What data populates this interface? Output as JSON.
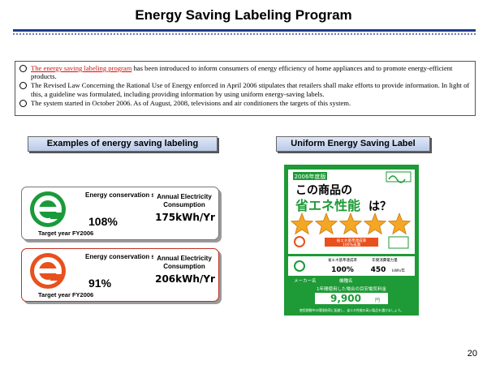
{
  "slide": {
    "title": "Energy Saving Labeling Program",
    "page_number": "20"
  },
  "bullets": {
    "b1_link": "The energy saving labeling program",
    "b1_rest": " has been introduced to inform consumers of energy efficiency of home appliances and to promote energy-efficient products.",
    "b2": "The Revised Law Concerning the Rational Use of Energy enforced in April 2006 stipulates  that retailers shall make efforts to provide information. In light of this, a guideline was formulated, including providing information by using uniform energy-saving labels.",
    "b3": "The system started in October 2006. As of August, 2008, televisions and air conditioners the targets of this system."
  },
  "examples": {
    "header": "Examples of energy saving labeling",
    "card1": {
      "label1": "Energy conservation standard achievement percentage",
      "percent": "108%",
      "label2": "Annual Electricity Consumption",
      "kwh": "175kWh/Yr",
      "target": "Target year FY2006",
      "color": "#1a9a3a"
    },
    "card2": {
      "label1": "Energy conservation standard achievement percentage",
      "percent": "91%",
      "label2": "Annual Electricity Consumption",
      "kwh": "206kWh/Yr",
      "target": "Target year FY2006",
      "color": "#e8501e"
    }
  },
  "uniform": {
    "header": "Uniform Energy Saving Label",
    "year_badge": "2006年度版",
    "line1": "この商品の",
    "line2": "省エネ性能",
    "line2b": "は？",
    "stars_filled": 5,
    "stars_total": 5,
    "achieve_text": "省エネ基準達成率",
    "achieve_pct": "100%未満",
    "sub_left": "省エネ基準達成率",
    "sub_right": "年間消費電力量",
    "val_left": "100%",
    "val_right": "450",
    "val_right_unit": "kWh/年",
    "maker": "メーカー名",
    "model": "機種名",
    "cost_caption": "1年間使用した場合の目安電気料金",
    "cost": "9,900",
    "cost_unit": "円",
    "footer": "使用期間中の環境負荷に配慮し、省エネ性能の高い製品を選びましょう。",
    "bg_color": "#1e9a36"
  }
}
